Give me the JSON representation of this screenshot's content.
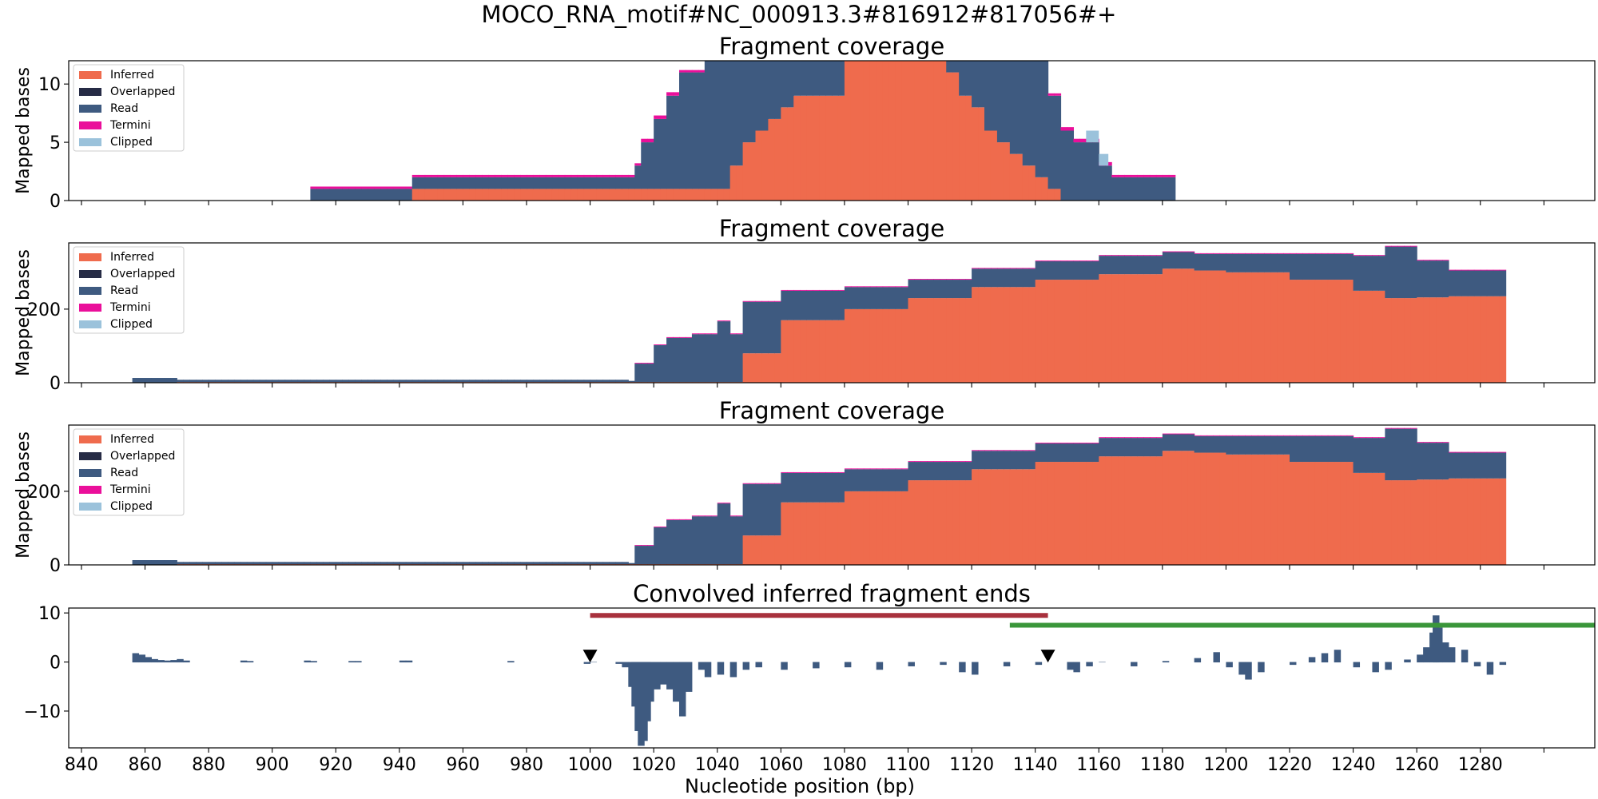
{
  "figure_title": "MOCO_RNA_motif#NC_000913.3#816912#817056#+",
  "colors": {
    "inferred": "#ef6b4d",
    "overlapped": "#262b45",
    "read": "#3e5a80",
    "termini": "#ea0f9a",
    "clipped": "#9bc2db",
    "red_bar": "#a8313d",
    "green_bar": "#3a963a",
    "conv": "#3e5a80"
  },
  "legend_entries": [
    "Inferred",
    "Overlapped",
    "Read",
    "Termini",
    "Clipped"
  ],
  "chart_data": [
    {
      "type": "area",
      "title": "Fragment coverage",
      "ylabel": "Mapped bases",
      "xlim": [
        836,
        1316
      ],
      "ylim": [
        0,
        12
      ],
      "yticks": [
        "0",
        "5",
        "10"
      ],
      "legend": "upper-left",
      "series": [
        {
          "name": "Inferred",
          "x": [
            943,
            1000,
            1013,
            1040,
            1044,
            1048,
            1052,
            1056,
            1060,
            1064,
            1080,
            1100,
            1112,
            1116,
            1120,
            1124,
            1128,
            1132,
            1136,
            1140,
            1144,
            1148
          ],
          "values": [
            1,
            1,
            1,
            1,
            3,
            5,
            6,
            7,
            8,
            9,
            12,
            12,
            11,
            9,
            8,
            6,
            5,
            4,
            3,
            2,
            1,
            0
          ]
        },
        {
          "name": "Read",
          "x": [
            912,
            943,
            1013,
            1014,
            1016,
            1020,
            1024,
            1028,
            1036,
            1040,
            1044,
            1056,
            1112,
            1120,
            1124,
            1128,
            1136,
            1140,
            1144,
            1148,
            1152,
            1160,
            1164,
            1172,
            1180,
            1183
          ],
          "values": [
            1,
            1,
            1,
            2,
            4,
            6,
            8,
            10,
            12,
            12,
            12,
            12,
            12,
            12,
            12,
            12,
            11,
            10,
            8,
            6,
            5,
            3,
            2,
            2,
            2,
            0
          ]
        },
        {
          "name": "Termini",
          "x": [
            912,
            1013,
            1016,
            1020,
            1028,
            1120,
            1136,
            1148,
            1158,
            1164,
            1182
          ],
          "values": [
            0.2,
            0.2,
            0.3,
            0.3,
            0.2,
            0.2,
            0.2,
            0.3,
            0.3,
            0.2,
            0.2
          ]
        },
        {
          "name": "Clipped",
          "x": [
            1156,
            1160,
            1163
          ],
          "values": [
            1,
            1,
            0
          ]
        }
      ]
    },
    {
      "type": "area",
      "title": "Fragment coverage",
      "ylabel": "Mapped bases",
      "xlim": [
        836,
        1316
      ],
      "ylim": [
        0,
        380
      ],
      "yticks": [
        "0",
        "200"
      ],
      "legend": "upper-left",
      "series": [
        {
          "name": "Inferred",
          "x": [
            856,
            870,
            1012,
            1044,
            1048,
            1060,
            1080,
            1100,
            1120,
            1140,
            1160,
            1180,
            1190,
            1200,
            1220,
            1240,
            1250,
            1260,
            1270,
            1287
          ],
          "values": [
            1,
            2,
            2,
            2,
            80,
            170,
            200,
            230,
            260,
            280,
            295,
            310,
            305,
            300,
            280,
            250,
            230,
            232,
            235,
            230
          ]
        },
        {
          "name": "Read",
          "x": [
            856,
            870,
            1012,
            1013,
            1020,
            1024,
            1032,
            1040,
            1044,
            1048,
            1060,
            1080,
            1100,
            1120,
            1140,
            1160,
            1180,
            1190,
            1200,
            1220,
            1240,
            1250,
            1260,
            1270,
            1287
          ],
          "values": [
            12,
            6,
            3,
            50,
            100,
            120,
            130,
            165,
            130,
            140,
            80,
            60,
            50,
            50,
            50,
            50,
            45,
            45,
            50,
            70,
            95,
            140,
            100,
            70,
            50
          ]
        },
        {
          "name": "Termini",
          "x": [
            1013,
            1287
          ],
          "values": [
            2,
            2
          ]
        }
      ]
    },
    {
      "type": "area",
      "title": "Fragment coverage",
      "ylabel": "Mapped bases",
      "xlim": [
        836,
        1316
      ],
      "ylim": [
        0,
        380
      ],
      "yticks": [
        "0",
        "200"
      ],
      "legend": "upper-left",
      "series": [
        {
          "name": "Inferred",
          "x": [
            856,
            870,
            1012,
            1044,
            1048,
            1060,
            1080,
            1100,
            1120,
            1140,
            1160,
            1180,
            1190,
            1200,
            1220,
            1240,
            1250,
            1260,
            1270,
            1287
          ],
          "values": [
            1,
            2,
            2,
            2,
            80,
            170,
            200,
            230,
            260,
            280,
            295,
            310,
            305,
            300,
            280,
            250,
            230,
            232,
            235,
            230
          ]
        },
        {
          "name": "Read",
          "x": [
            856,
            870,
            1012,
            1013,
            1020,
            1024,
            1032,
            1040,
            1044,
            1048,
            1060,
            1080,
            1100,
            1120,
            1140,
            1160,
            1180,
            1190,
            1200,
            1220,
            1240,
            1250,
            1260,
            1270,
            1287
          ],
          "values": [
            12,
            6,
            3,
            50,
            100,
            120,
            130,
            165,
            130,
            140,
            80,
            60,
            50,
            50,
            50,
            50,
            45,
            45,
            50,
            70,
            95,
            140,
            100,
            70,
            50
          ]
        },
        {
          "name": "Termini",
          "x": [
            1013,
            1287
          ],
          "values": [
            2,
            2
          ]
        }
      ]
    },
    {
      "type": "bar",
      "title": "Convolved inferred fragment ends",
      "xlabel": "Nucleotide position (bp)",
      "xlim": [
        836,
        1316
      ],
      "ylim": [
        -17.5,
        11
      ],
      "yticks": [
        "−10",
        "0",
        "10"
      ],
      "xticks": [
        "840",
        "860",
        "880",
        "900",
        "920",
        "940",
        "960",
        "980",
        "1000",
        "1020",
        "1040",
        "1060",
        "1080",
        "1100",
        "1120",
        "1140",
        "1160",
        "1180",
        "1200",
        "1220",
        "1240",
        "1260",
        "1280"
      ],
      "x": [
        856,
        858,
        860,
        862,
        864,
        866,
        868,
        870,
        872,
        890,
        892,
        910,
        912,
        924,
        926,
        940,
        942,
        974,
        998,
        1000,
        1008,
        1010,
        1012,
        1013,
        1014,
        1015,
        1016,
        1017,
        1018,
        1020,
        1022,
        1024,
        1026,
        1028,
        1030,
        1034,
        1036,
        1040,
        1044,
        1048,
        1052,
        1060,
        1070,
        1080,
        1090,
        1100,
        1110,
        1116,
        1120,
        1130,
        1140,
        1150,
        1152,
        1156,
        1160,
        1170,
        1180,
        1190,
        1196,
        1200,
        1204,
        1206,
        1210,
        1220,
        1226,
        1230,
        1234,
        1240,
        1246,
        1250,
        1256,
        1260,
        1262,
        1264,
        1265,
        1266,
        1268,
        1270,
        1274,
        1278,
        1282,
        1286
      ],
      "values": [
        1.8,
        1.5,
        1.0,
        0.6,
        0.4,
        0.3,
        0.4,
        0.6,
        0.3,
        0.3,
        0.2,
        0.3,
        0.2,
        0.2,
        0.2,
        0.3,
        0.3,
        0.2,
        -0.3,
        0.0,
        -0.3,
        -1.0,
        -5.0,
        -9.0,
        -14.0,
        -17.0,
        -16.0,
        -12.0,
        -8.0,
        -5.5,
        -4.5,
        -5.5,
        -8.0,
        -11.0,
        -6.0,
        -1.5,
        -3.0,
        -2.5,
        -3.0,
        -1.5,
        -1.0,
        -1.5,
        -1.2,
        -1.0,
        -1.5,
        -0.8,
        -0.5,
        -2.0,
        -2.5,
        -0.8,
        -0.5,
        -1.5,
        -2.0,
        -0.8,
        0.0,
        -0.8,
        0.2,
        0.8,
        2.0,
        -1.0,
        -2.5,
        -3.5,
        -2.0,
        -0.5,
        1.0,
        1.8,
        2.5,
        -1.0,
        -2.0,
        -1.5,
        0.5,
        1.5,
        3.0,
        6.0,
        9.5,
        7.0,
        4.0,
        3.0,
        2.5,
        -0.8,
        -2.5,
        -0.5
      ],
      "intervals": [
        {
          "from": 1000,
          "to": 1144,
          "y": 9.5,
          "color": "red_bar"
        },
        {
          "from": 1132,
          "to": 1316,
          "y": 7.5,
          "color": "green_bar"
        }
      ],
      "markers": [
        {
          "x": 1000,
          "y": 1.2,
          "shape": "triangle-down"
        },
        {
          "x": 1144,
          "y": 1.2,
          "shape": "triangle-down"
        }
      ]
    }
  ]
}
